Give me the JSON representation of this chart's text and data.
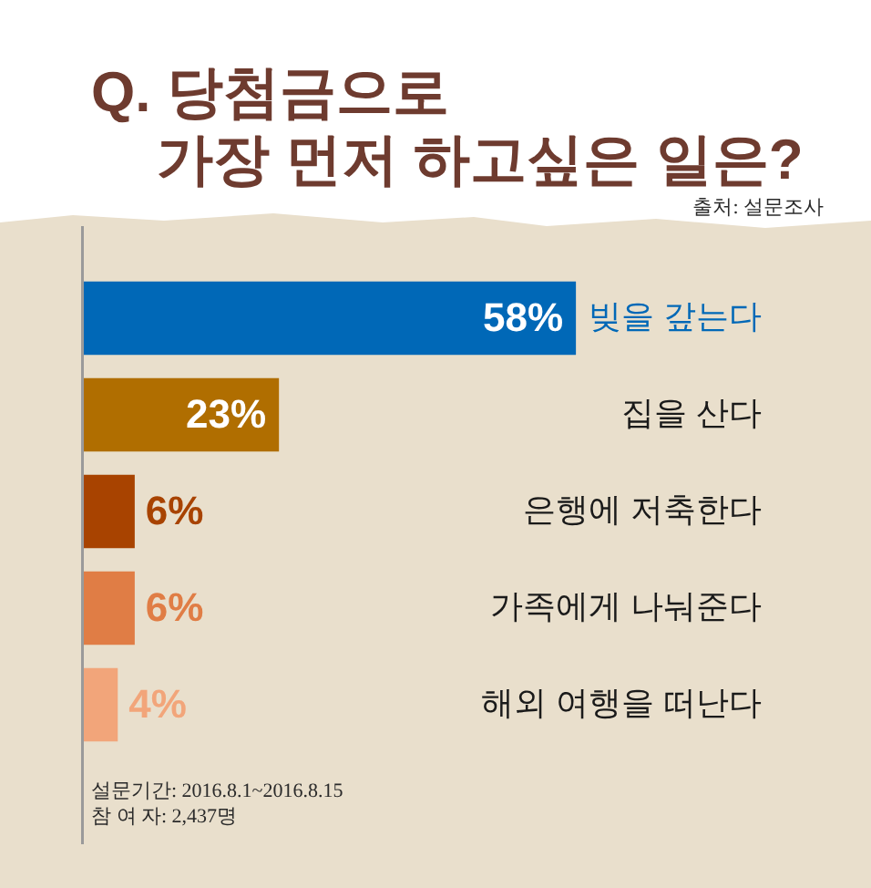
{
  "chart_data": {
    "type": "bar",
    "orientation": "horizontal",
    "title": "Q. 당첨금으로 가장 먼저 하고싶은 일은?",
    "categories": [
      "빚을 갚는다",
      "집을 산다",
      "은행에 저축한다",
      "가족에게 나눠준다",
      "해외 여행을 떠난다"
    ],
    "values": [
      58,
      23,
      6,
      6,
      4
    ],
    "colors": [
      "#0068b7",
      "#b06e00",
      "#a84300",
      "#e07d45",
      "#f2a57a"
    ],
    "value_labels": [
      "58%",
      "23%",
      "6%",
      "6%",
      "4%"
    ],
    "annotations": [
      "출처: 설문조사",
      "설문기간: 2016.8.1~2016.8.15",
      "참 여 자: 2,437명"
    ]
  }
}
